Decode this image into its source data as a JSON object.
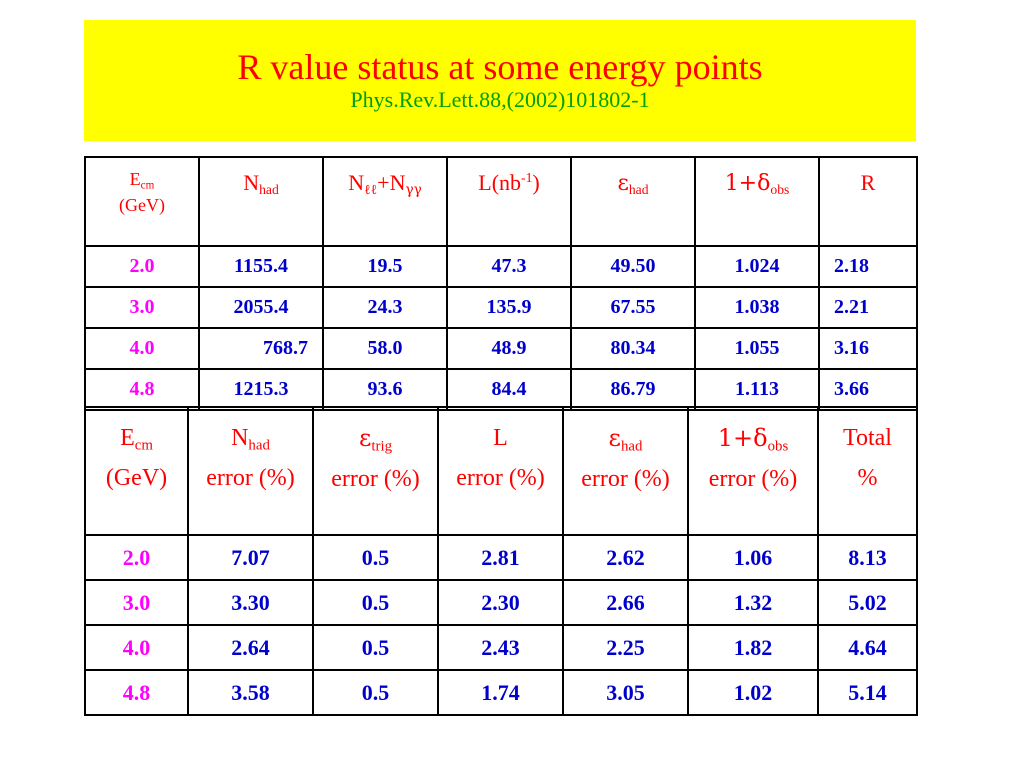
{
  "title": {
    "main": "R value status at some energy points",
    "subtitle": "Phys.Rev.Lett.88,(2002)101802-1"
  },
  "table1": {
    "headers": {
      "ecm_main": "E",
      "ecm_sub": "cm",
      "ecm_unit": "(GeV)",
      "nhad_main": "N",
      "nhad_sub": "had",
      "nll_main": "N",
      "nll_sub": "ℓℓ",
      "nll_plus": "+N",
      "ngg_sub": "γγ",
      "lum_main": "L(nb",
      "lum_sup": "-1",
      "lum_close": ")",
      "eff_main": "ε",
      "eff_sub": "had",
      "rad_main": "1+δ",
      "rad_sub": "obs",
      "r": "R"
    },
    "rows": [
      [
        "2.0",
        "1155.4",
        "19.5",
        "47.3",
        "49.50",
        "1.024",
        "2.18"
      ],
      [
        "3.0",
        "2055.4",
        "24.3",
        "135.9",
        "67.55",
        "1.038",
        "2.21"
      ],
      [
        "4.0",
        "768.7",
        "58.0",
        "48.9",
        "80.34",
        "1.055",
        "3.16"
      ],
      [
        "4.8",
        "1215.3",
        "93.6",
        "84.4",
        "86.79",
        "1.113",
        "3.66"
      ]
    ]
  },
  "table2": {
    "headers": {
      "ecm_main": "E",
      "ecm_sub": "cm",
      "ecm_unit": "(GeV)",
      "nhad_main": "N",
      "nhad_sub": "had",
      "nhad_err": "error (%)",
      "trig_main": "ε",
      "trig_sub": "trig",
      "trig_err": "error (%)",
      "lum_main": "L",
      "lum_err": "error (%)",
      "eff_main": "ε",
      "eff_sub": "had",
      "eff_err": "error (%)",
      "rad_main": "1+δ",
      "rad_sub": "obs",
      "rad_err": "error (%)",
      "total_main": "Total",
      "total_unit": "%"
    },
    "rows": [
      [
        "2.0",
        "7.07",
        "0.5",
        "2.81",
        "2.62",
        "1.06",
        "8.13"
      ],
      [
        "3.0",
        "3.30",
        "0.5",
        "2.30",
        "2.66",
        "1.32",
        "5.02"
      ],
      [
        "4.0",
        "2.64",
        "0.5",
        "2.43",
        "2.25",
        "1.82",
        "4.64"
      ],
      [
        "4.8",
        "3.58",
        "0.5",
        "1.74",
        "3.05",
        "1.02",
        "5.14"
      ]
    ]
  },
  "colors": {
    "title_bg": "#ffff00",
    "title": "#ff0000",
    "subtitle": "#00a000",
    "header": "#ff0000",
    "energy": "#ff00ff",
    "values": "#0000cc"
  }
}
